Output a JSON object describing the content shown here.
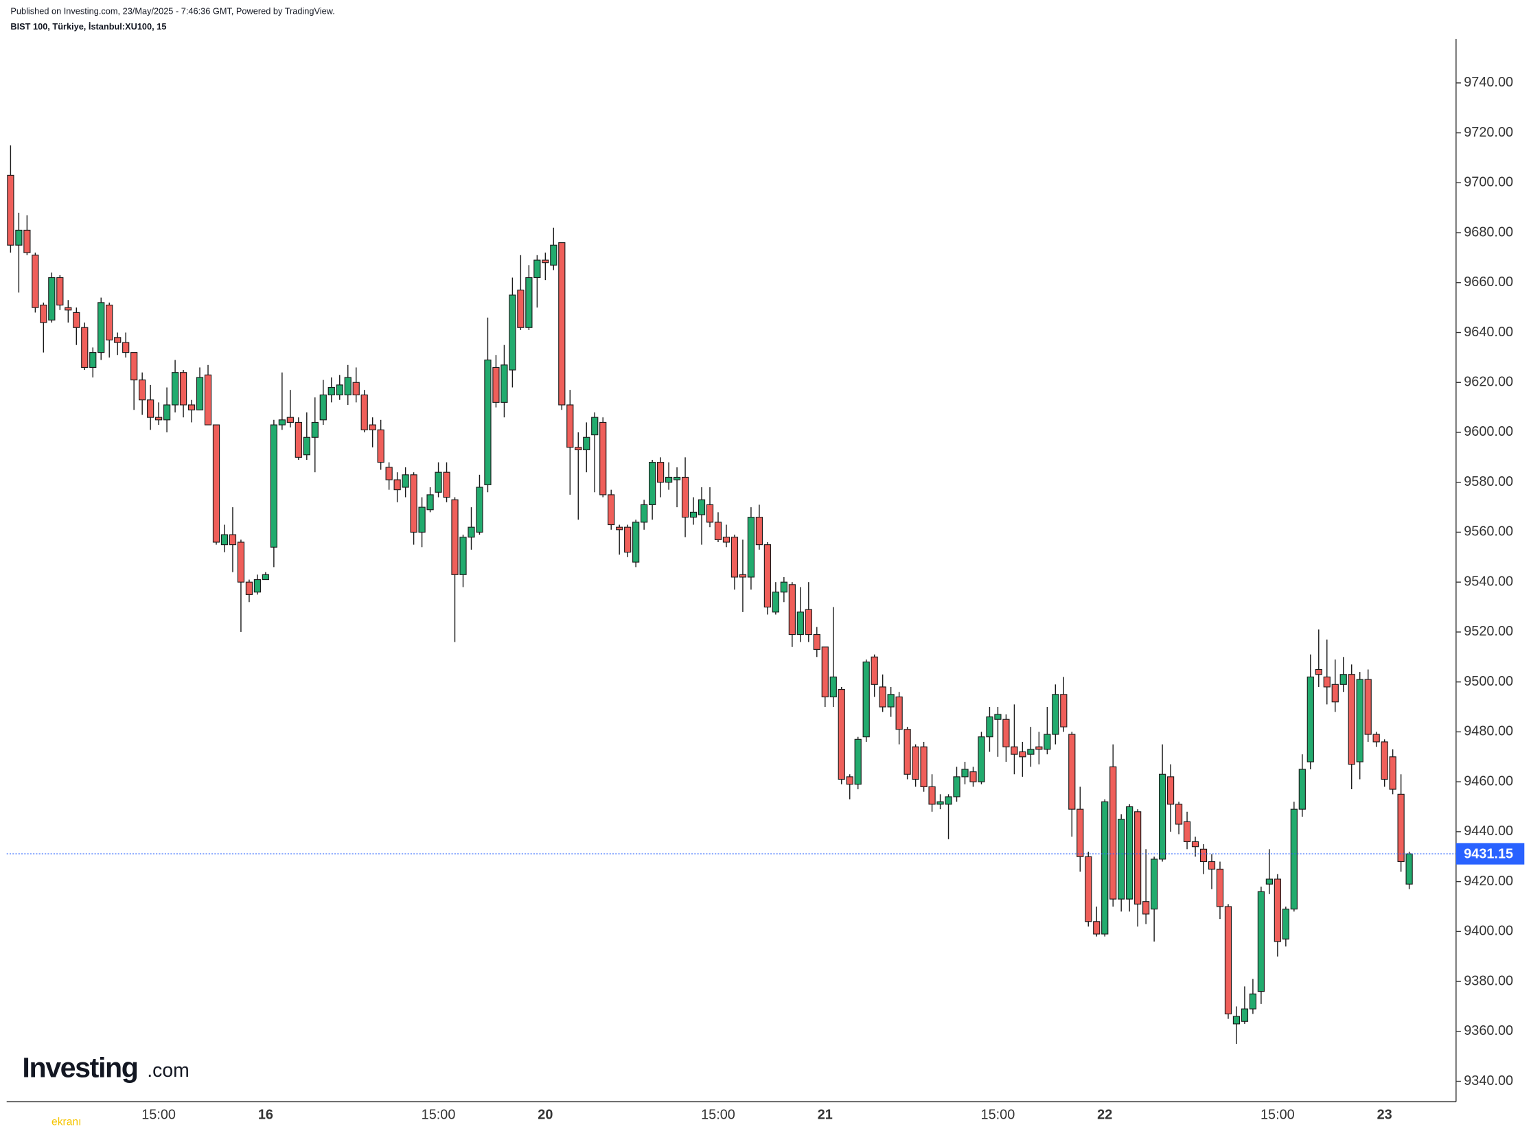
{
  "header": {
    "published": "Published on Investing.com, 23/May/2025 - 7:46:36 GMT, Powered by TradingView.",
    "symbol": "BIST 100, Türkiye, İstanbul:XU100, 15"
  },
  "logo": {
    "name": "Investing",
    "suffix": ".com"
  },
  "watermark": "ekranı",
  "chart_data": {
    "type": "candlestick",
    "up_color": "#22ab6e",
    "down_color": "#ef5f5a",
    "last_price": 9431.15,
    "last_price_color": "#2962ff",
    "ylim": [
      9331.8,
      9757.6
    ],
    "yticks": [
      {
        "value": 9340,
        "label": "9340.00"
      },
      {
        "value": 9360,
        "label": "9360.00"
      },
      {
        "value": 9380,
        "label": "9380.00"
      },
      {
        "value": 9400,
        "label": "9400.00"
      },
      {
        "value": 9420,
        "label": "9420.00"
      },
      {
        "value": 9440,
        "label": "9440.00"
      },
      {
        "value": 9460,
        "label": "9460.00"
      },
      {
        "value": 9480,
        "label": "9480.00"
      },
      {
        "value": 9500,
        "label": "9500.00"
      },
      {
        "value": 9520,
        "label": "9520.00"
      },
      {
        "value": 9540,
        "label": "9540.00"
      },
      {
        "value": 9560,
        "label": "9560.00"
      },
      {
        "value": 9580,
        "label": "9580.00"
      },
      {
        "value": 9600,
        "label": "9600.00"
      },
      {
        "value": 9620,
        "label": "9620.00"
      },
      {
        "value": 9640,
        "label": "9640.00"
      },
      {
        "value": 9660,
        "label": "9660.00"
      },
      {
        "value": 9680,
        "label": "9680.00"
      },
      {
        "value": 9700,
        "label": "9700.00"
      },
      {
        "value": 9720,
        "label": "9720.00"
      },
      {
        "value": 9740,
        "label": "9740.00"
      }
    ],
    "categories": [
      null,
      null,
      null,
      null,
      null,
      null,
      null,
      null,
      null,
      null,
      null,
      null,
      null,
      null,
      null,
      null,
      null,
      null,
      "15:00",
      null,
      null,
      null,
      null,
      null,
      null,
      null,
      null,
      null,
      null,
      null,
      null,
      "16",
      null,
      null,
      null,
      null,
      null,
      null,
      null,
      null,
      null,
      null,
      null,
      null,
      null,
      null,
      null,
      null,
      null,
      null,
      null,
      null,
      "15:00",
      null,
      null,
      null,
      null,
      null,
      null,
      null,
      null,
      null,
      null,
      null,
      null,
      "20",
      null,
      null,
      null,
      null,
      null,
      null,
      null,
      null,
      null,
      null,
      null,
      null,
      null,
      null,
      null,
      null,
      null,
      null,
      null,
      null,
      "15:00",
      null,
      null,
      null,
      null,
      null,
      null,
      null,
      null,
      null,
      null,
      null,
      null,
      "21",
      null,
      null,
      null,
      null,
      null,
      null,
      null,
      null,
      null,
      null,
      null,
      null,
      null,
      null,
      null,
      null,
      null,
      null,
      null,
      null,
      "15:00",
      null,
      null,
      null,
      null,
      null,
      null,
      null,
      null,
      null,
      null,
      null,
      null,
      "22",
      null,
      null,
      null,
      null,
      null,
      null,
      null,
      null,
      null,
      null,
      null,
      null,
      null,
      null,
      null,
      null,
      null,
      null,
      null,
      null,
      "15:00",
      null,
      null,
      null,
      null,
      null,
      null,
      null,
      null,
      null,
      null,
      null,
      null,
      "23",
      null,
      null,
      null
    ],
    "open": [
      9703,
      9675,
      9681,
      9671,
      9651,
      9645,
      9662,
      9650,
      9648,
      9642,
      9626,
      9632,
      9651,
      9638,
      9636,
      9632,
      9621,
      9613,
      9606,
      9605,
      9611,
      9624,
      9611,
      9609,
      9623,
      9603,
      9555,
      9559,
      9556,
      9540,
      9536,
      9541,
      9554,
      9603,
      9606,
      9604,
      9591,
      9598,
      9605,
      9615,
      9615,
      9615,
      9620,
      9615,
      9603,
      9601,
      9586,
      9581,
      9578,
      9583,
      9560,
      9569,
      9576,
      9584,
      9573,
      9543,
      9558,
      9560,
      9579,
      9626,
      9612,
      9625,
      9657,
      9642,
      9662,
      9669,
      9667,
      9676,
      9611,
      9594,
      9593,
      9599,
      9604,
      9575,
      9562,
      9562,
      9548,
      9564,
      9571,
      9588,
      9580,
      9581,
      9582,
      9566,
      9567,
      9571,
      9564,
      9558,
      9558,
      9543,
      9542,
      9566,
      9555,
      9528,
      9536,
      9539,
      9519,
      9529,
      9519,
      9514,
      9494,
      9497,
      9462,
      9459,
      9478,
      9510,
      9498,
      9490,
      9494,
      9481,
      9474,
      9474,
      9458,
      9451,
      9451,
      9454,
      9462,
      9464,
      9460,
      9478,
      9485,
      9485,
      9474,
      9472,
      9471,
      9474,
      9473,
      9479,
      9495,
      9479,
      9449,
      9430,
      9404,
      9399,
      9466,
      9413,
      9413,
      9448,
      9412,
      9409,
      9429,
      9462,
      9451,
      9444,
      9436,
      9433,
      9428,
      9425,
      9410,
      9363,
      9364,
      9369,
      9376,
      9419,
      9421,
      9397,
      9409,
      9449,
      9468,
      9505,
      9502,
      9499,
      9499,
      9503,
      9468,
      9501,
      9479,
      9476,
      9470,
      9455,
      9419
    ],
    "high": [
      9715,
      9688,
      9687,
      9672,
      9652,
      9664,
      9663,
      9653,
      9650,
      9644,
      9634,
      9654,
      9652,
      9640,
      9640,
      9632,
      9624,
      9619,
      9612,
      9618,
      9629,
      9625,
      9613,
      9626,
      9627,
      9603,
      9563,
      9570,
      9557,
      9541,
      9543,
      9544,
      9605,
      9624,
      9617,
      9606,
      9608,
      9614,
      9621,
      9622,
      9623,
      9627,
      9626,
      9617,
      9606,
      9605,
      9588,
      9584,
      9586,
      9584,
      9574,
      9578,
      9588,
      9588,
      9574,
      9559,
      9570,
      9583,
      9646,
      9631,
      9635,
      9662,
      9671,
      9667,
      9671,
      9672,
      9682,
      9676,
      9617,
      9600,
      9604,
      9608,
      9606,
      9577,
      9563,
      9563,
      9565,
      9573,
      9589,
      9590,
      9588,
      9586,
      9590,
      9574,
      9578,
      9578,
      9568,
      9563,
      9559,
      9557,
      9570,
      9571,
      9556,
      9540,
      9542,
      9540,
      9538,
      9540,
      9522,
      9514,
      9530,
      9498,
      9463,
      9478,
      9509,
      9511,
      9503,
      9498,
      9496,
      9482,
      9475,
      9476,
      9463,
      9455,
      9455,
      9466,
      9468,
      9466,
      9480,
      9490,
      9490,
      9487,
      9491,
      9476,
      9482,
      9480,
      9490,
      9499,
      9502,
      9480,
      9458,
      9432,
      9410,
      9453,
      9475,
      9447,
      9451,
      9449,
      9433,
      9430,
      9475,
      9467,
      9452,
      9448,
      9438,
      9435,
      9431,
      9428,
      9411,
      9370,
      9378,
      9381,
      9418,
      9433,
      9423,
      9410,
      9452,
      9471,
      9511,
      9521,
      9517,
      9509,
      9510,
      9507,
      9504,
      9505,
      9480,
      9477,
      9473,
      9463,
      9432
    ],
    "low": [
      9672,
      9656,
      9671,
      9648,
      9632,
      9644,
      9649,
      9644,
      9635,
      9625,
      9622,
      9629,
      9630,
      9631,
      9630,
      9609,
      9607,
      9601,
      9603,
      9600,
      9608,
      9606,
      9604,
      9609,
      9603,
      9555,
      9552,
      9544,
      9520,
      9532,
      9535,
      9541,
      9546,
      9601,
      9602,
      9589,
      9589,
      9584,
      9603,
      9612,
      9613,
      9611,
      9612,
      9600,
      9594,
      9585,
      9577,
      9572,
      9574,
      9555,
      9554,
      9568,
      9574,
      9572,
      9516,
      9538,
      9553,
      9559,
      9576,
      9610,
      9606,
      9618,
      9641,
      9641,
      9650,
      9661,
      9665,
      9609,
      9575,
      9565,
      9584,
      9576,
      9574,
      9561,
      9551,
      9550,
      9546,
      9561,
      9565,
      9574,
      9577,
      9570,
      9558,
      9563,
      9555,
      9562,
      9556,
      9554,
      9537,
      9528,
      9537,
      9553,
      9527,
      9527,
      9532,
      9514,
      9516,
      9516,
      9510,
      9490,
      9490,
      9459,
      9453,
      9457,
      9476,
      9494,
      9488,
      9486,
      9475,
      9461,
      9458,
      9456,
      9448,
      9449,
      9437,
      9452,
      9459,
      9458,
      9459,
      9472,
      9470,
      9468,
      9463,
      9462,
      9466,
      9467,
      9471,
      9475,
      9480,
      9438,
      9424,
      9402,
      9398,
      9398,
      9410,
      9408,
      9408,
      9402,
      9403,
      9396,
      9428,
      9440,
      9439,
      9433,
      9430,
      9423,
      9417,
      9405,
      9365,
      9355,
      9363,
      9367,
      9371,
      9415,
      9390,
      9394,
      9408,
      9446,
      9465,
      9498,
      9491,
      9488,
      9496,
      9457,
      9461,
      9476,
      9474,
      9458,
      9455,
      9424,
      9417
    ],
    "close": [
      9675,
      9681,
      9672,
      9650,
      9644,
      9662,
      9651,
      9649,
      9642,
      9626,
      9632,
      9652,
      9637,
      9636,
      9632,
      9621,
      9613,
      9606,
      9605,
      9611,
      9624,
      9611,
      9609,
      9622,
      9603,
      9556,
      9559,
      9555,
      9540,
      9535,
      9541,
      9543,
      9603,
      9605,
      9604,
      9590,
      9598,
      9604,
      9615,
      9618,
      9619,
      9622,
      9615,
      9601,
      9601,
      9588,
      9581,
      9577,
      9583,
      9560,
      9570,
      9575,
      9584,
      9574,
      9543,
      9558,
      9562,
      9578,
      9629,
      9612,
      9627,
      9655,
      9642,
      9662,
      9669,
      9668,
      9675,
      9611,
      9594,
      9593,
      9598,
      9606,
      9575,
      9563,
      9561,
      9552,
      9564,
      9571,
      9588,
      9580,
      9582,
      9582,
      9566,
      9568,
      9573,
      9564,
      9557,
      9556,
      9542,
      9542,
      9566,
      9555,
      9530,
      9536,
      9540,
      9519,
      9528,
      9519,
      9513,
      9494,
      9502,
      9461,
      9459,
      9477,
      9508,
      9499,
      9490,
      9495,
      9481,
      9463,
      9461,
      9458,
      9451,
      9452,
      9454,
      9462,
      9465,
      9460,
      9478,
      9486,
      9487,
      9474,
      9471,
      9470,
      9473,
      9473,
      9479,
      9495,
      9482,
      9449,
      9430,
      9404,
      9399,
      9452,
      9413,
      9445,
      9450,
      9411,
      9407,
      9429,
      9463,
      9451,
      9443,
      9436,
      9434,
      9428,
      9425,
      9410,
      9367,
      9366,
      9369,
      9375,
      9416,
      9421,
      9396,
      9409,
      9449,
      9465,
      9502,
      9503,
      9498,
      9492,
      9503,
      9467,
      9501,
      9479,
      9476,
      9461,
      9457,
      9428,
      9431.15
    ]
  }
}
